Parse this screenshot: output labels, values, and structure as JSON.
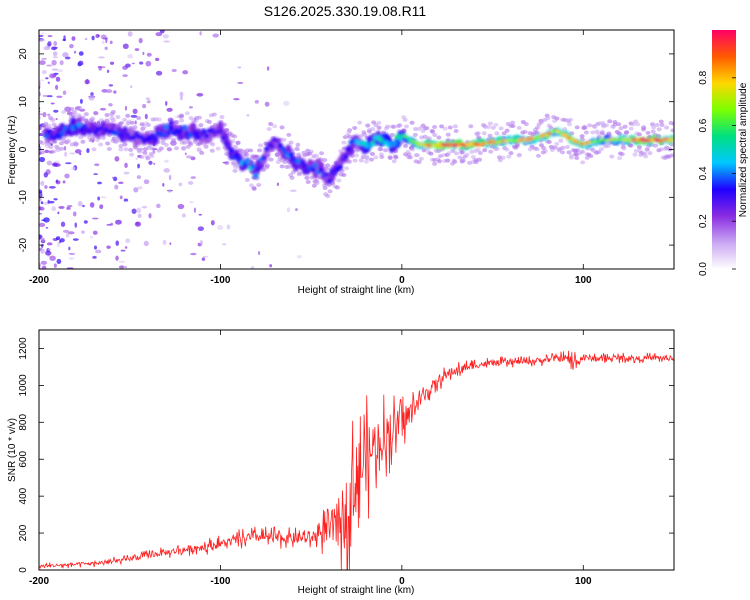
{
  "page_title": "S126.2025.330.19.08.R11",
  "chart_data": [
    {
      "type": "heatmap",
      "title": "S126.2025.330.19.08.R11",
      "xlabel": "Height of straight line (km)",
      "ylabel": "Frequency (Hz)",
      "xlim": [
        -200,
        150
      ],
      "ylim": [
        -25,
        25
      ],
      "x_ticks": [
        -200,
        -100,
        0,
        100
      ],
      "y_ticks": [
        -20,
        -10,
        0,
        10,
        20
      ],
      "colorbar": {
        "label": "Normalized spectral amplitude",
        "range": [
          0.0,
          1.0
        ],
        "ticks": [
          "0.0",
          "0.2",
          "0.4",
          "0.6",
          "0.8"
        ],
        "colors": [
          "#ffffff",
          "#c9a6f2",
          "#8a2be2",
          "#1f00ff",
          "#00c8ff",
          "#00e080",
          "#7cff00",
          "#ffd700",
          "#ff5a00",
          "#ff0066"
        ]
      },
      "ridge": {
        "description": "frequency of peak amplitude vs height",
        "x": [
          -190,
          -180,
          -170,
          -160,
          -150,
          -140,
          -130,
          -120,
          -110,
          -100,
          -95,
          -90,
          -85,
          -80,
          -75,
          -70,
          -65,
          -60,
          -55,
          -50,
          -45,
          -40,
          -35,
          -30,
          -25,
          -20,
          -15,
          -10,
          -5,
          0,
          10,
          20,
          40,
          60,
          70,
          80,
          85,
          90,
          95,
          100,
          110,
          120,
          130,
          140,
          150
        ],
        "freq": [
          3,
          5,
          4,
          4,
          3,
          2,
          4,
          4,
          3,
          4,
          0,
          -2,
          -3,
          -5,
          0,
          2,
          0,
          -2,
          -3,
          -4,
          -4,
          -6,
          -4,
          0,
          2,
          1,
          2,
          2,
          1,
          3,
          1,
          1,
          1,
          2,
          2,
          3,
          4,
          3,
          2,
          1,
          2,
          2,
          2,
          2,
          2
        ],
        "amp": [
          0.35,
          0.4,
          0.3,
          0.35,
          0.3,
          0.3,
          0.35,
          0.35,
          0.3,
          0.3,
          0.35,
          0.4,
          0.45,
          0.4,
          0.3,
          0.3,
          0.35,
          0.4,
          0.35,
          0.35,
          0.35,
          0.3,
          0.3,
          0.3,
          0.4,
          0.45,
          0.5,
          0.5,
          0.5,
          0.5,
          0.75,
          0.95,
          0.9,
          0.75,
          0.8,
          0.85,
          0.7,
          0.8,
          0.75,
          0.85,
          0.6,
          0.7,
          0.95,
          0.9,
          0.8
        ]
      }
    },
    {
      "type": "line",
      "xlabel": "Height of straight line (km)",
      "ylabel": "SNR (10 * v/v)",
      "xlim": [
        -200,
        150
      ],
      "ylim": [
        0,
        1300
      ],
      "x_ticks": [
        -200,
        -100,
        0,
        100
      ],
      "y_ticks": [
        0,
        200,
        400,
        600,
        800,
        1000,
        1200
      ],
      "color": "#ff2020",
      "series": [
        {
          "name": "SNR",
          "x": [
            -200,
            -190,
            -180,
            -170,
            -160,
            -150,
            -140,
            -130,
            -120,
            -110,
            -100,
            -90,
            -80,
            -70,
            -60,
            -50,
            -45,
            -40,
            -35,
            -30,
            -25,
            -20,
            -15,
            -10,
            -5,
            0,
            5,
            10,
            15,
            20,
            25,
            30,
            40,
            50,
            60,
            70,
            80,
            90,
            95,
            100,
            110,
            120,
            130,
            140,
            150
          ],
          "mean": [
            20,
            25,
            30,
            35,
            45,
            60,
            80,
            95,
            110,
            125,
            140,
            165,
            180,
            175,
            170,
            175,
            200,
            220,
            250,
            350,
            500,
            600,
            680,
            720,
            760,
            800,
            860,
            920,
            980,
            1020,
            1060,
            1080,
            1110,
            1120,
            1125,
            1130,
            1140,
            1150,
            1120,
            1150,
            1145,
            1150,
            1145,
            1150,
            1145
          ],
          "jitter": [
            20,
            20,
            20,
            20,
            25,
            25,
            30,
            35,
            40,
            45,
            50,
            55,
            60,
            60,
            60,
            70,
            110,
            180,
            300,
            380,
            420,
            400,
            320,
            260,
            220,
            160,
            120,
            90,
            70,
            60,
            50,
            45,
            40,
            35,
            30,
            30,
            35,
            40,
            90,
            40,
            30,
            30,
            30,
            30,
            30
          ]
        }
      ]
    }
  ]
}
